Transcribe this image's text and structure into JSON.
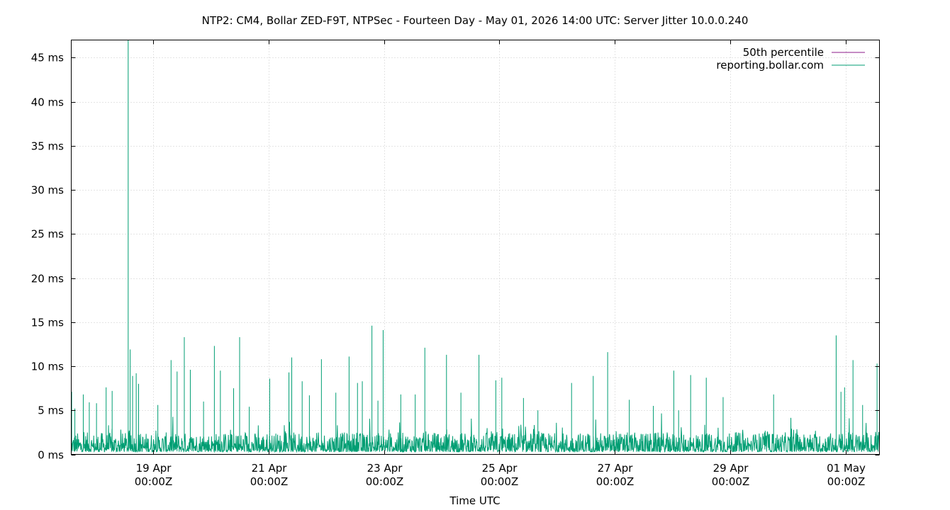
{
  "chart_data": {
    "type": "line",
    "title": "NTP2: CM4, Bollar ZED-F9T, NTPSec - Fourteen Day - May 01, 2026 14:00 UTC: Server Jitter 10.0.0.240",
    "xlabel": "Time UTC",
    "ylabel": "",
    "x_range": [
      "2026-04-17T14:00Z",
      "2026-05-01T14:00Z"
    ],
    "ylim": [
      0,
      47
    ],
    "y_ticks": [
      {
        "value": 0,
        "label": "0 ms"
      },
      {
        "value": 5,
        "label": "5 ms"
      },
      {
        "value": 10,
        "label": "10 ms"
      },
      {
        "value": 15,
        "label": "15 ms"
      },
      {
        "value": 20,
        "label": "20 ms"
      },
      {
        "value": 25,
        "label": "25 ms"
      },
      {
        "value": 30,
        "label": "30 ms"
      },
      {
        "value": 35,
        "label": "35 ms"
      },
      {
        "value": 40,
        "label": "40 ms"
      },
      {
        "value": 45,
        "label": "45 ms"
      }
    ],
    "x_ticks": [
      {
        "value": "2026-04-19T00:00Z",
        "label1": "19 Apr",
        "label2": "00:00Z"
      },
      {
        "value": "2026-04-21T00:00Z",
        "label1": "21 Apr",
        "label2": "00:00Z"
      },
      {
        "value": "2026-04-23T00:00Z",
        "label1": "23 Apr",
        "label2": "00:00Z"
      },
      {
        "value": "2026-04-25T00:00Z",
        "label1": "25 Apr",
        "label2": "00:00Z"
      },
      {
        "value": "2026-04-27T00:00Z",
        "label1": "27 Apr",
        "label2": "00:00Z"
      },
      {
        "value": "2026-04-29T00:00Z",
        "label1": "29 Apr",
        "label2": "00:00Z"
      },
      {
        "value": "2026-05-01T00:00Z",
        "label1": "01 May",
        "label2": "00:00Z"
      }
    ],
    "grid": true,
    "legend_position": "top-right",
    "series": [
      {
        "name": "50th percentile",
        "color": "#8b1a89",
        "values": []
      },
      {
        "name": "reporting.bollar.com",
        "color": "#009e73",
        "baseline_ms": [
          0.3,
          2.5
        ],
        "spikes": [
          {
            "x": "2026-04-17T14:10Z",
            "y": 7.1
          },
          {
            "x": "2026-04-17T15:30Z",
            "y": 5.2
          },
          {
            "x": "2026-04-17T19:00Z",
            "y": 6.8
          },
          {
            "x": "2026-04-17T21:30Z",
            "y": 5.9
          },
          {
            "x": "2026-04-18T00:30Z",
            "y": 5.8
          },
          {
            "x": "2026-04-18T04:30Z",
            "y": 7.6
          },
          {
            "x": "2026-04-18T07:00Z",
            "y": 7.2
          },
          {
            "x": "2026-04-18T13:40Z",
            "y": 47
          },
          {
            "x": "2026-04-18T14:30Z",
            "y": 11.9
          },
          {
            "x": "2026-04-18T15:30Z",
            "y": 8.9
          },
          {
            "x": "2026-04-18T17:00Z",
            "y": 9.2
          },
          {
            "x": "2026-04-18T18:00Z",
            "y": 8.0
          },
          {
            "x": "2026-04-19T02:00Z",
            "y": 5.6
          },
          {
            "x": "2026-04-19T07:30Z",
            "y": 10.7
          },
          {
            "x": "2026-04-19T10:00Z",
            "y": 9.4
          },
          {
            "x": "2026-04-19T13:00Z",
            "y": 13.3
          },
          {
            "x": "2026-04-19T15:30Z",
            "y": 9.6
          },
          {
            "x": "2026-04-19T21:00Z",
            "y": 6.0
          },
          {
            "x": "2026-04-20T01:30Z",
            "y": 12.3
          },
          {
            "x": "2026-04-20T04:00Z",
            "y": 9.5
          },
          {
            "x": "2026-04-20T09:30Z",
            "y": 7.5
          },
          {
            "x": "2026-04-20T12:00Z",
            "y": 13.3
          },
          {
            "x": "2026-04-20T16:00Z",
            "y": 5.4
          },
          {
            "x": "2026-04-21T00:30Z",
            "y": 8.6
          },
          {
            "x": "2026-04-21T08:30Z",
            "y": 9.3
          },
          {
            "x": "2026-04-21T09:40Z",
            "y": 11.0
          },
          {
            "x": "2026-04-21T14:00Z",
            "y": 8.3
          },
          {
            "x": "2026-04-21T17:00Z",
            "y": 6.7
          },
          {
            "x": "2026-04-21T22:00Z",
            "y": 10.8
          },
          {
            "x": "2026-04-22T04:00Z",
            "y": 7.0
          },
          {
            "x": "2026-04-22T09:30Z",
            "y": 11.1
          },
          {
            "x": "2026-04-22T13:00Z",
            "y": 8.1
          },
          {
            "x": "2026-04-22T15:00Z",
            "y": 8.3
          },
          {
            "x": "2026-04-22T19:00Z",
            "y": 14.6
          },
          {
            "x": "2026-04-22T21:30Z",
            "y": 6.1
          },
          {
            "x": "2026-04-22T23:40Z",
            "y": 14.1
          },
          {
            "x": "2026-04-23T07:00Z",
            "y": 6.8
          },
          {
            "x": "2026-04-23T13:00Z",
            "y": 6.8
          },
          {
            "x": "2026-04-23T17:00Z",
            "y": 12.1
          },
          {
            "x": "2026-04-24T02:00Z",
            "y": 11.3
          },
          {
            "x": "2026-04-24T08:00Z",
            "y": 7.0
          },
          {
            "x": "2026-04-24T15:30Z",
            "y": 11.3
          },
          {
            "x": "2026-04-24T22:30Z",
            "y": 8.4
          },
          {
            "x": "2026-04-25T01:00Z",
            "y": 8.7
          },
          {
            "x": "2026-04-25T10:00Z",
            "y": 6.4
          },
          {
            "x": "2026-04-25T16:00Z",
            "y": 5.0
          },
          {
            "x": "2026-04-26T06:00Z",
            "y": 8.1
          },
          {
            "x": "2026-04-26T15:00Z",
            "y": 8.9
          },
          {
            "x": "2026-04-26T21:00Z",
            "y": 11.6
          },
          {
            "x": "2026-04-27T06:00Z",
            "y": 6.2
          },
          {
            "x": "2026-04-27T16:00Z",
            "y": 5.5
          },
          {
            "x": "2026-04-28T00:30Z",
            "y": 9.5
          },
          {
            "x": "2026-04-28T02:30Z",
            "y": 5.0
          },
          {
            "x": "2026-04-28T07:30Z",
            "y": 9.0
          },
          {
            "x": "2026-04-28T14:00Z",
            "y": 8.7
          },
          {
            "x": "2026-04-28T21:00Z",
            "y": 6.5
          },
          {
            "x": "2026-04-29T18:00Z",
            "y": 6.8
          },
          {
            "x": "2026-04-30T20:00Z",
            "y": 13.5
          },
          {
            "x": "2026-04-30T22:00Z",
            "y": 7.1
          },
          {
            "x": "2026-04-30T23:30Z",
            "y": 7.6
          },
          {
            "x": "2026-05-01T03:00Z",
            "y": 10.7
          },
          {
            "x": "2026-05-01T07:00Z",
            "y": 5.6
          },
          {
            "x": "2026-05-01T13:00Z",
            "y": 10.3
          }
        ]
      }
    ]
  }
}
